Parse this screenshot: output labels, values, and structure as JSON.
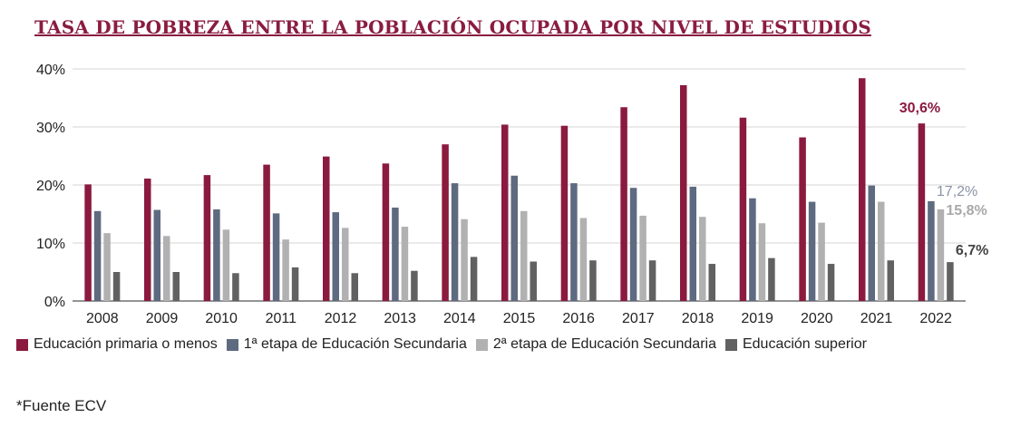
{
  "title": "TASA DE POBREZA ENTRE LA POBLACIÓN OCUPADA POR NIVEL DE ESTUDIOS",
  "footnote": "*Fuente ECV",
  "chart_data": {
    "type": "bar",
    "title": "TASA DE POBREZA ENTRE LA POBLACIÓN OCUPADA POR NIVEL DE ESTUDIOS",
    "xlabel": "",
    "ylabel": "",
    "ylim": [
      0,
      40
    ],
    "yticks": [
      "0%",
      "10%",
      "20%",
      "30%",
      "40%"
    ],
    "grid": true,
    "legend_position": "bottom",
    "categories": [
      "2008",
      "2009",
      "2010",
      "2011",
      "2012",
      "2013",
      "2014",
      "2015",
      "2016",
      "2017",
      "2018",
      "2019",
      "2020",
      "2021",
      "2022"
    ],
    "series": [
      {
        "name": "Educación primaria o menos",
        "color": "#8b1a3f",
        "values": [
          20.1,
          21.1,
          21.7,
          23.5,
          24.9,
          23.7,
          27.0,
          30.4,
          30.2,
          33.4,
          37.2,
          31.6,
          28.2,
          38.4,
          30.6
        ]
      },
      {
        "name": "1ª etapa de Educación Secundaria",
        "color": "#5e6a80",
        "values": [
          15.5,
          15.7,
          15.8,
          15.1,
          15.3,
          16.1,
          20.3,
          21.6,
          20.3,
          19.5,
          19.7,
          17.7,
          17.1,
          19.9,
          17.2
        ]
      },
      {
        "name": "2ª etapa de Educación Secundaria",
        "color": "#b1b1b1",
        "values": [
          11.7,
          11.2,
          12.3,
          10.6,
          12.6,
          12.8,
          14.1,
          15.5,
          14.3,
          14.7,
          14.5,
          13.4,
          13.5,
          17.1,
          15.8
        ]
      },
      {
        "name": "Educación superior",
        "color": "#616161",
        "values": [
          5.0,
          5.0,
          4.8,
          5.8,
          4.8,
          5.2,
          7.6,
          6.8,
          7.0,
          7.0,
          6.4,
          7.4,
          6.4,
          7.0,
          6.7
        ]
      }
    ],
    "annotations": [
      {
        "text": "30,6%",
        "series": 0,
        "category": "2022",
        "color": "#8b1a3f",
        "bold": true
      },
      {
        "text": "17,2%",
        "series": 1,
        "category": "2022",
        "color": "#8a93a8",
        "bold": false
      },
      {
        "text": "15,8%",
        "series": 2,
        "category": "2022",
        "color": "#a9a9a9",
        "bold": true
      },
      {
        "text": "6,7%",
        "series": 3,
        "category": "2022",
        "color": "#444444",
        "bold": true
      }
    ]
  }
}
